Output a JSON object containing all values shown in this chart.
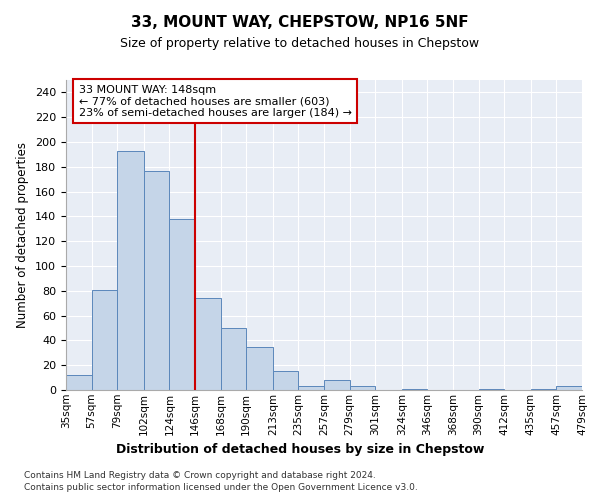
{
  "title": "33, MOUNT WAY, CHEPSTOW, NP16 5NF",
  "subtitle": "Size of property relative to detached houses in Chepstow",
  "xlabel": "Distribution of detached houses by size in Chepstow",
  "ylabel": "Number of detached properties",
  "bin_edges": [
    35,
    57,
    79,
    102,
    124,
    146,
    168,
    190,
    213,
    235,
    257,
    279,
    301,
    324,
    346,
    368,
    390,
    412,
    435,
    457,
    479
  ],
  "bar_heights": [
    12,
    81,
    193,
    177,
    138,
    74,
    50,
    35,
    15,
    3,
    8,
    3,
    0,
    1,
    0,
    0,
    1,
    0,
    1,
    3
  ],
  "tick_labels": [
    "35sqm",
    "57sqm",
    "79sqm",
    "102sqm",
    "124sqm",
    "146sqm",
    "168sqm",
    "190sqm",
    "213sqm",
    "235sqm",
    "257sqm",
    "279sqm",
    "301sqm",
    "324sqm",
    "346sqm",
    "368sqm",
    "390sqm",
    "412sqm",
    "435sqm",
    "457sqm",
    "479sqm"
  ],
  "bar_color": "#c5d5e8",
  "bar_edge_color": "#5b87bb",
  "vline_x": 146,
  "vline_color": "#cc0000",
  "annotation_text": "33 MOUNT WAY: 148sqm\n← 77% of detached houses are smaller (603)\n23% of semi-detached houses are larger (184) →",
  "annotation_box_color": "#cc0000",
  "ylim": [
    0,
    250
  ],
  "yticks": [
    0,
    20,
    40,
    60,
    80,
    100,
    120,
    140,
    160,
    180,
    200,
    220,
    240
  ],
  "bg_color": "#e8edf5",
  "footer_line1": "Contains HM Land Registry data © Crown copyright and database right 2024.",
  "footer_line2": "Contains public sector information licensed under the Open Government Licence v3.0."
}
